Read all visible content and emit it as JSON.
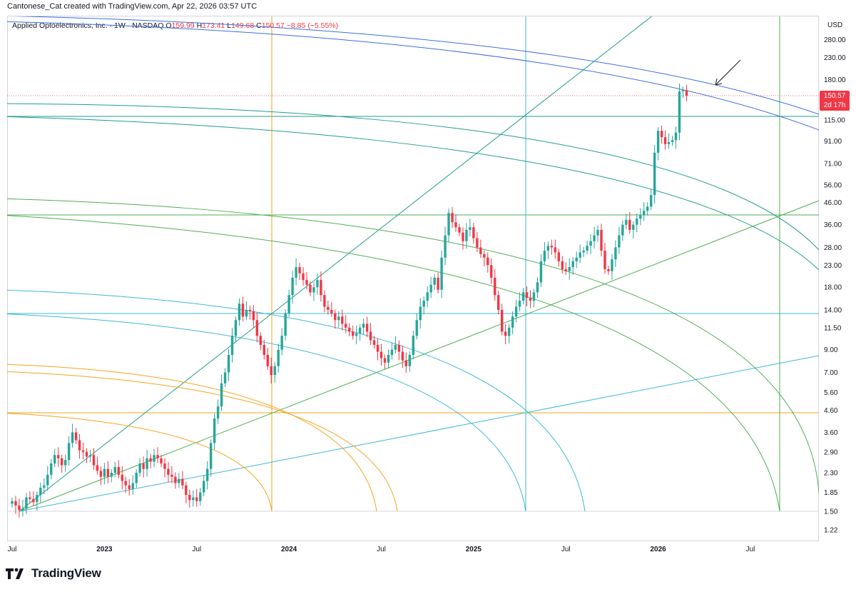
{
  "header": {
    "credit": "Cantonese_Cat created with TradingView.com, Apr 22, 2026 03:57 UTC"
  },
  "legend": {
    "symbol": "Applied Optoelectronics, Inc. · 1W · NASDAQ",
    "o_key": "O",
    "o_val": "159.99",
    "h_key": "H",
    "h_val": "173.41",
    "l_key": "L",
    "l_val": "149.68",
    "c_key": "C",
    "c_val": "150.57",
    "change": "−8.85 (−5.55%)"
  },
  "axis": {
    "currency": "USD"
  },
  "price_label": {
    "price": "150.57",
    "countdown": "2d 17h"
  },
  "brand": {
    "name": "TradingView"
  },
  "colors": {
    "up": "#26a69a",
    "down": "#f23645",
    "orange": "#f7a21b",
    "cyan": "#3db8d8",
    "green": "#4caf50",
    "blue": "#3d6ee0",
    "teal": "#1f9e8f",
    "grid": "#d1d4dc"
  },
  "chart_data": {
    "type": "candlestick",
    "interval": "1W",
    "log_scale": true,
    "y_ticks": [
      "280.00",
      "230.00",
      "180.00",
      "150.57",
      "115.00",
      "91.00",
      "71.00",
      "56.00",
      "46.00",
      "36.00",
      "28.00",
      "23.00",
      "18.00",
      "14.00",
      "11.50",
      "9.00",
      "7.00",
      "5.60",
      "4.60",
      "3.60",
      "2.90",
      "2.30",
      "1.85",
      "1.50",
      "1.22"
    ],
    "y_tick_values": [
      280,
      230,
      180,
      115,
      91,
      71,
      56,
      46,
      36,
      28,
      23,
      18,
      14,
      11.5,
      9,
      7,
      5.6,
      4.6,
      3.6,
      2.9,
      2.3,
      1.85,
      1.5,
      1.22
    ],
    "x_ticks": [
      "Jul",
      "2023",
      "Jul",
      "2024",
      "Jul",
      "2025",
      "Jul",
      "2026",
      "Jul"
    ],
    "x_tick_bold": [
      false,
      true,
      false,
      true,
      false,
      true,
      false,
      true,
      false
    ],
    "x_tick_weeks": [
      0,
      26,
      52,
      78,
      104,
      130,
      156,
      182,
      208
    ],
    "last_price": 150.57,
    "closes": [
      1.68,
      1.6,
      1.52,
      1.55,
      1.75,
      1.72,
      1.66,
      1.8,
      1.95,
      2.0,
      2.25,
      2.55,
      2.8,
      2.7,
      2.5,
      2.65,
      3.2,
      3.6,
      3.3,
      2.95,
      2.9,
      2.75,
      2.8,
      2.5,
      2.35,
      2.2,
      2.4,
      2.2,
      2.3,
      2.45,
      2.25,
      2.1,
      2.0,
      1.92,
      2.05,
      2.3,
      2.55,
      2.4,
      2.7,
      2.6,
      2.8,
      2.7,
      2.55,
      2.4,
      2.25,
      2.2,
      2.05,
      2.15,
      2.0,
      1.8,
      1.7,
      1.75,
      1.68,
      1.85,
      2.1,
      2.4,
      3.2,
      4.2,
      4.8,
      6.2,
      7.0,
      8.5,
      10.5,
      12.5,
      15.0,
      13.0,
      14.0,
      13.8,
      12.5,
      10.5,
      9.5,
      8.5,
      7.5,
      6.8,
      7.5,
      9.0,
      10.5,
      13.5,
      16.5,
      20.0,
      22.5,
      21.0,
      19.5,
      18.5,
      17.0,
      18.0,
      19.5,
      16.5,
      14.5,
      14.0,
      13.5,
      12.5,
      13.0,
      12.0,
      11.5,
      11.0,
      10.5,
      10.8,
      11.5,
      12.0,
      11.0,
      10.0,
      9.5,
      8.8,
      8.2,
      7.8,
      8.5,
      9.0,
      9.5,
      8.8,
      8.0,
      7.5,
      8.5,
      10.5,
      12.5,
      14.5,
      15.5,
      17.0,
      18.5,
      20.0,
      17.5,
      25.0,
      32.0,
      41.0,
      37.0,
      35.0,
      33.0,
      30.0,
      34.0,
      35.0,
      31.0,
      28.0,
      26.0,
      25.0,
      23.0,
      20.0,
      16.5,
      14.0,
      11.0,
      10.5,
      11.5,
      13.0,
      14.5,
      15.5,
      17.0,
      16.0,
      15.5,
      17.0,
      19.0,
      24.0,
      27.0,
      28.5,
      28.0,
      26.5,
      24.0,
      22.0,
      21.5,
      22.5,
      24.0,
      25.0,
      26.5,
      27.0,
      28.5,
      30.0,
      32.0,
      34.0,
      27.0,
      22.0,
      21.5,
      24.5,
      28.0,
      32.0,
      36.0,
      38.0,
      34.0,
      36.0,
      38.5,
      40.0,
      42.0,
      44.0,
      50.0,
      80.0,
      102.0,
      95.0,
      88.0,
      90.0,
      92.0,
      100.0,
      158.0,
      159.99,
      150.57
    ]
  }
}
